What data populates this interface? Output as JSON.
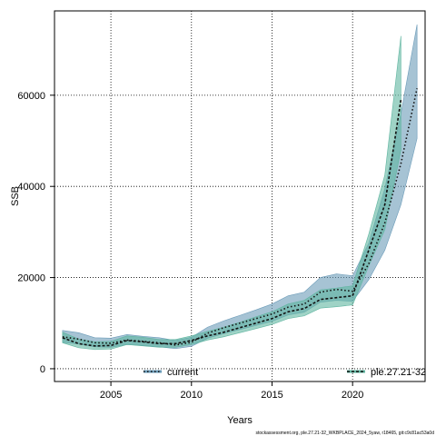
{
  "chart_data": {
    "type": "area",
    "xlabel": "Years",
    "ylabel": "SSB",
    "xlim": [
      2001.5,
      2024.5
    ],
    "ylim": [
      -2800,
      78500
    ],
    "xticks": [
      2005,
      2010,
      2015,
      2020
    ],
    "yticks": [
      0,
      20000,
      40000,
      60000
    ],
    "grid": true,
    "legend_placement": "bottom",
    "caption": "stockassessment.org, ple.27.21-32_WKBPLACE_2024_5yaw, r18465, git:c9c81ac53a0d",
    "series": [
      {
        "name": "current",
        "color": "#1e6f99",
        "band_color": "#6b9bb8",
        "line_style": "dotted",
        "x": [
          2002,
          2003,
          2004,
          2005,
          2006,
          2007,
          2008,
          2009,
          2010,
          2011,
          2012,
          2013,
          2014,
          2015,
          2016,
          2017,
          2018,
          2019,
          2020,
          2021,
          2022,
          2023,
          2024
        ],
        "y": [
          7000,
          6500,
          5700,
          5600,
          6300,
          6000,
          5700,
          5200,
          5800,
          7800,
          9000,
          10000,
          11000,
          12000,
          13500,
          14200,
          16800,
          17400,
          17000,
          23000,
          32000,
          45000,
          61500
        ],
        "lower": [
          5800,
          5400,
          4800,
          4700,
          5300,
          5100,
          4800,
          4400,
          4900,
          6700,
          7700,
          8600,
          9500,
          10400,
          11800,
          12400,
          14600,
          15000,
          14800,
          19500,
          26000,
          36000,
          50500
        ],
        "upper": [
          8400,
          7900,
          6800,
          6700,
          7500,
          7100,
          6800,
          6200,
          6900,
          9100,
          10500,
          11700,
          12900,
          14200,
          16000,
          16800,
          20000,
          20800,
          20400,
          27500,
          39500,
          56000,
          75500
        ]
      },
      {
        "name": "ple.27.21-32",
        "color": "#2a8a78",
        "band_color": "#5fb5a0",
        "line_style": "dashed",
        "x": [
          2002,
          2003,
          2004,
          2005,
          2006,
          2007,
          2008,
          2009,
          2010,
          2011,
          2012,
          2013,
          2014,
          2015,
          2016,
          2017,
          2018,
          2019,
          2020,
          2021,
          2022,
          2023
        ],
        "y": [
          6800,
          5500,
          5000,
          5100,
          6200,
          5900,
          5500,
          5500,
          6200,
          7200,
          8000,
          9000,
          10000,
          11000,
          12500,
          13200,
          15200,
          15600,
          16000,
          26000,
          36000,
          59000
        ],
        "lower": [
          5700,
          4600,
          4200,
          4300,
          5300,
          5000,
          4700,
          4700,
          5300,
          6300,
          7000,
          7900,
          8800,
          9700,
          11000,
          11600,
          13300,
          13600,
          14000,
          22500,
          30500,
          48000
        ],
        "upper": [
          8000,
          6500,
          5900,
          6000,
          7200,
          6900,
          6400,
          6400,
          7200,
          8200,
          9100,
          10200,
          11400,
          12500,
          14200,
          15000,
          17300,
          17700,
          18200,
          29500,
          42500,
          73000
        ]
      }
    ]
  }
}
